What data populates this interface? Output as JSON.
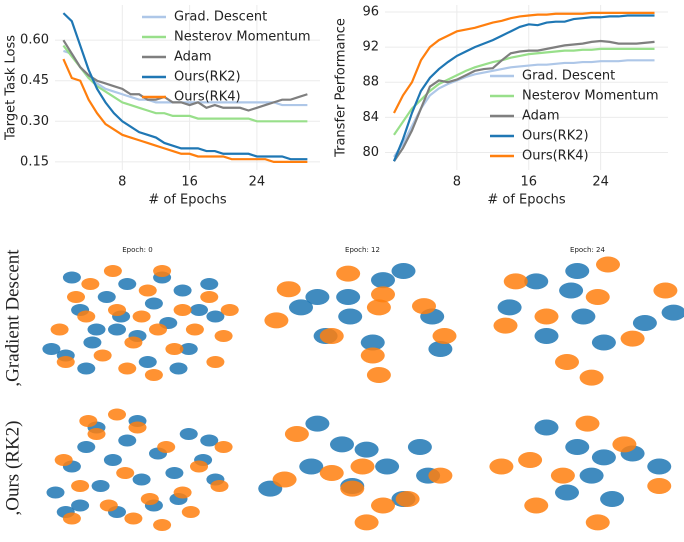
{
  "chart_data": [
    {
      "type": "line",
      "ylabel": "Target Task Loss",
      "xlabel": "# of Epochs",
      "legend": "upper right",
      "grid": true,
      "x": [
        1,
        2,
        3,
        4,
        5,
        6,
        7,
        8,
        9,
        10,
        11,
        12,
        13,
        14,
        15,
        16,
        17,
        18,
        19,
        20,
        21,
        22,
        23,
        24,
        25,
        26,
        27,
        28,
        29,
        30
      ],
      "xlim": [
        0,
        31.5
      ],
      "xticks": [
        8,
        16,
        24
      ],
      "ylim": [
        0.12,
        0.73
      ],
      "yticks": [
        0.15,
        {
          "value": 0.3,
          "label": "0.30"
        },
        0.45,
        {
          "value": 0.6,
          "label": "0.60"
        }
      ],
      "series": [
        {
          "name": "Grad. Descent",
          "color": "#aec7e8",
          "values": [
            0.56,
            0.55,
            0.5,
            0.46,
            0.44,
            0.42,
            0.41,
            0.4,
            0.39,
            0.38,
            0.38,
            0.37,
            0.37,
            0.37,
            0.37,
            0.37,
            0.37,
            0.37,
            0.37,
            0.37,
            0.37,
            0.37,
            0.37,
            0.37,
            0.37,
            0.37,
            0.36,
            0.36,
            0.36,
            0.36
          ]
        },
        {
          "name": "Nesterov Momentum",
          "color": "#98df8a",
          "values": [
            0.58,
            0.54,
            0.5,
            0.46,
            0.43,
            0.41,
            0.39,
            0.37,
            0.36,
            0.35,
            0.34,
            0.33,
            0.33,
            0.32,
            0.32,
            0.32,
            0.31,
            0.31,
            0.31,
            0.31,
            0.31,
            0.31,
            0.31,
            0.3,
            0.3,
            0.3,
            0.3,
            0.3,
            0.3,
            0.3
          ]
        },
        {
          "name": "Adam",
          "color": "#7f7f7f",
          "values": [
            0.6,
            0.55,
            0.5,
            0.47,
            0.45,
            0.44,
            0.43,
            0.42,
            0.4,
            0.4,
            0.38,
            0.38,
            0.39,
            0.37,
            0.37,
            0.36,
            0.37,
            0.35,
            0.36,
            0.35,
            0.35,
            0.35,
            0.34,
            0.35,
            0.36,
            0.37,
            0.38,
            0.38,
            0.39,
            0.4
          ]
        },
        {
          "name": "Ours(RK2)",
          "color": "#1f77b4",
          "values": [
            0.7,
            0.67,
            0.58,
            0.49,
            0.42,
            0.37,
            0.33,
            0.3,
            0.28,
            0.26,
            0.25,
            0.24,
            0.22,
            0.21,
            0.2,
            0.2,
            0.2,
            0.19,
            0.19,
            0.18,
            0.18,
            0.18,
            0.18,
            0.17,
            0.17,
            0.17,
            0.17,
            0.16,
            0.16,
            0.16
          ]
        },
        {
          "name": "Ours(RK4)",
          "color": "#ff7f0e",
          "values": [
            0.53,
            0.46,
            0.45,
            0.38,
            0.33,
            0.29,
            0.27,
            0.25,
            0.24,
            0.23,
            0.22,
            0.21,
            0.2,
            0.19,
            0.18,
            0.18,
            0.17,
            0.17,
            0.17,
            0.17,
            0.16,
            0.16,
            0.16,
            0.16,
            0.16,
            0.15,
            0.15,
            0.15,
            0.15,
            0.15
          ]
        }
      ]
    },
    {
      "type": "line",
      "ylabel": "Transfer Performance",
      "xlabel": "# of Epochs",
      "legend": "lower right",
      "grid": true,
      "x": [
        1,
        2,
        3,
        4,
        5,
        6,
        7,
        8,
        9,
        10,
        11,
        12,
        13,
        14,
        15,
        16,
        17,
        18,
        19,
        20,
        21,
        22,
        23,
        24,
        25,
        26,
        27,
        28,
        29,
        30
      ],
      "xlim": [
        0,
        31.5
      ],
      "xticks": [
        8,
        16,
        24
      ],
      "ylim": [
        78,
        96.8
      ],
      "yticks": [
        80,
        84,
        88,
        92,
        96
      ],
      "series": [
        {
          "name": "Grad. Descent",
          "color": "#aec7e8",
          "values": [
            79.5,
            81,
            83,
            85,
            86.5,
            87.3,
            87.8,
            88.2,
            88.6,
            88.9,
            89.1,
            89.3,
            89.5,
            89.7,
            89.8,
            89.9,
            90,
            90,
            90.1,
            90.2,
            90.2,
            90.3,
            90.3,
            90.4,
            90.4,
            90.4,
            90.5,
            90.5,
            90.5,
            90.5
          ]
        },
        {
          "name": "Nesterov Momentum",
          "color": "#98df8a",
          "values": [
            82,
            83.5,
            85,
            86,
            87,
            87.8,
            88.3,
            88.8,
            89.3,
            89.7,
            90,
            90.3,
            90.5,
            90.8,
            91,
            91.2,
            91.3,
            91.4,
            91.5,
            91.6,
            91.6,
            91.7,
            91.7,
            91.8,
            91.8,
            91.8,
            91.8,
            91.8,
            91.8,
            91.8
          ]
        },
        {
          "name": "Adam",
          "color": "#7f7f7f",
          "values": [
            79,
            80.5,
            82.5,
            85,
            87.5,
            88.2,
            88,
            88.3,
            88.8,
            89.3,
            89.5,
            89.6,
            90.5,
            91.3,
            91.5,
            91.6,
            91.6,
            91.8,
            92,
            92.2,
            92.3,
            92.4,
            92.6,
            92.7,
            92.6,
            92.4,
            92.4,
            92.4,
            92.5,
            92.6
          ]
        },
        {
          "name": "Ours(RK2)",
          "color": "#1f77b4",
          "values": [
            79,
            81.5,
            84.5,
            87,
            88.5,
            89.5,
            90.3,
            91,
            91.5,
            92,
            92.4,
            92.8,
            93.3,
            93.8,
            94.3,
            94.6,
            94.5,
            94.8,
            94.9,
            94.9,
            95.2,
            95.3,
            95.4,
            95.4,
            95.5,
            95.5,
            95.6,
            95.6,
            95.6,
            95.6
          ]
        },
        {
          "name": "Ours(RK4)",
          "color": "#ff7f0e",
          "values": [
            84.5,
            86.5,
            88,
            90.5,
            92,
            92.8,
            93.3,
            93.8,
            94,
            94.2,
            94.5,
            94.8,
            95,
            95.3,
            95.5,
            95.6,
            95.7,
            95.7,
            95.8,
            95.8,
            95.8,
            95.8,
            95.9,
            95.9,
            95.9,
            95.9,
            95.9,
            95.9,
            95.9,
            95.9
          ]
        }
      ]
    },
    {
      "type": "scatter",
      "title": "Epoch: 0",
      "xlim": [
        0,
        100
      ],
      "ylim": [
        0,
        100
      ],
      "series": [
        {
          "color": "#1f77b4",
          "x": [
            8,
            15,
            22,
            30,
            35,
            42,
            50,
            58,
            65,
            72,
            80,
            88,
            18,
            28,
            45,
            55,
            62,
            75,
            85,
            40,
            25,
            70
          ],
          "values": [
            30,
            25,
            60,
            45,
            70,
            55,
            40,
            65,
            50,
            75,
            60,
            55,
            85,
            35,
            80,
            20,
            85,
            30,
            80,
            45,
            15,
            15
          ]
        },
        {
          "color": "#ff7f0e",
          "x": [
            12,
            20,
            27,
            33,
            40,
            48,
            55,
            62,
            68,
            78,
            85,
            92,
            25,
            38,
            52,
            60,
            72,
            88,
            45,
            15,
            95,
            58
          ],
          "values": [
            45,
            70,
            80,
            25,
            60,
            35,
            75,
            90,
            30,
            45,
            70,
            40,
            55,
            90,
            55,
            45,
            60,
            20,
            15,
            20,
            60,
            10
          ]
        }
      ]
    },
    {
      "type": "scatter",
      "title": "Epoch: 12",
      "xlim": [
        0,
        100
      ],
      "ylim": [
        0,
        100
      ],
      "series": [
        {
          "color": "#1f77b4",
          "x": [
            28,
            43,
            44,
            32,
            55,
            84,
            88,
            60,
            70,
            20
          ],
          "values": [
            70,
            70,
            55,
            40,
            35,
            55,
            30,
            83,
            90,
            62
          ]
        },
        {
          "color": "#ff7f0e",
          "x": [
            14,
            43,
            58,
            60,
            80,
            8,
            55,
            58,
            35,
            90
          ],
          "values": [
            76,
            88,
            62,
            72,
            63,
            52,
            25,
            10,
            40,
            40
          ]
        }
      ]
    },
    {
      "type": "scatter",
      "title": "Epoch: 24",
      "xlim": [
        0,
        100
      ],
      "ylim": [
        0,
        100
      ],
      "series": [
        {
          "color": "#1f77b4",
          "x": [
            12,
            25,
            42,
            48,
            58,
            78,
            92,
            45,
            30
          ],
          "values": [
            62,
            82,
            75,
            55,
            35,
            50,
            58,
            90,
            40
          ]
        },
        {
          "color": "#ff7f0e",
          "x": [
            15,
            30,
            55,
            60,
            88,
            10,
            40,
            52,
            72
          ],
          "values": [
            82,
            55,
            70,
            95,
            75,
            48,
            20,
            8,
            38
          ]
        }
      ]
    },
    {
      "type": "scatter",
      "xlim": [
        0,
        100
      ],
      "ylim": [
        0,
        100
      ],
      "series": [
        {
          "color": "#1f77b4",
          "x": [
            10,
            18,
            25,
            32,
            38,
            45,
            52,
            60,
            68,
            75,
            82,
            88,
            22,
            40,
            58,
            70,
            85,
            30,
            50,
            15
          ],
          "values": [
            35,
            55,
            70,
            40,
            60,
            75,
            45,
            65,
            50,
            80,
            60,
            45,
            25,
            20,
            25,
            30,
            75,
            85,
            90,
            20
          ]
        },
        {
          "color": "#ff7f0e",
          "x": [
            14,
            22,
            30,
            36,
            44,
            50,
            56,
            64,
            72,
            80,
            90,
            26,
            48,
            62,
            76,
            92,
            40,
            18
          ],
          "values": [
            60,
            40,
            80,
            25,
            50,
            85,
            30,
            70,
            35,
            55,
            40,
            90,
            15,
            10,
            20,
            70,
            95,
            15
          ]
        }
      ]
    },
    {
      "type": "scatter",
      "xlim": [
        0,
        100
      ],
      "ylim": [
        0,
        100
      ],
      "series": [
        {
          "color": "#1f77b4",
          "x": [
            28,
            25,
            40,
            52,
            62,
            78,
            82,
            70,
            5,
            45
          ],
          "values": [
            88,
            55,
            72,
            68,
            55,
            70,
            48,
            30,
            38,
            40
          ]
        },
        {
          "color": "#ff7f0e",
          "x": [
            18,
            12,
            50,
            60,
            72,
            35,
            45,
            52,
            88
          ],
          "values": [
            80,
            45,
            55,
            25,
            30,
            50,
            38,
            12,
            48
          ]
        }
      ]
    },
    {
      "type": "scatter",
      "xlim": [
        0,
        100
      ],
      "ylim": [
        0,
        100
      ],
      "series": [
        {
          "color": "#1f77b4",
          "x": [
            30,
            45,
            58,
            52,
            72,
            85,
            40,
            62
          ],
          "values": [
            85,
            70,
            62,
            48,
            65,
            55,
            35,
            30
          ]
        },
        {
          "color": "#ff7f0e",
          "x": [
            8,
            22,
            38,
            50,
            68,
            85,
            25,
            55
          ],
          "values": [
            55,
            60,
            48,
            88,
            72,
            40,
            25,
            12
          ]
        }
      ]
    }
  ],
  "row_labels": [
    ",Gradient Descent",
    ",Ours (RK2)"
  ]
}
